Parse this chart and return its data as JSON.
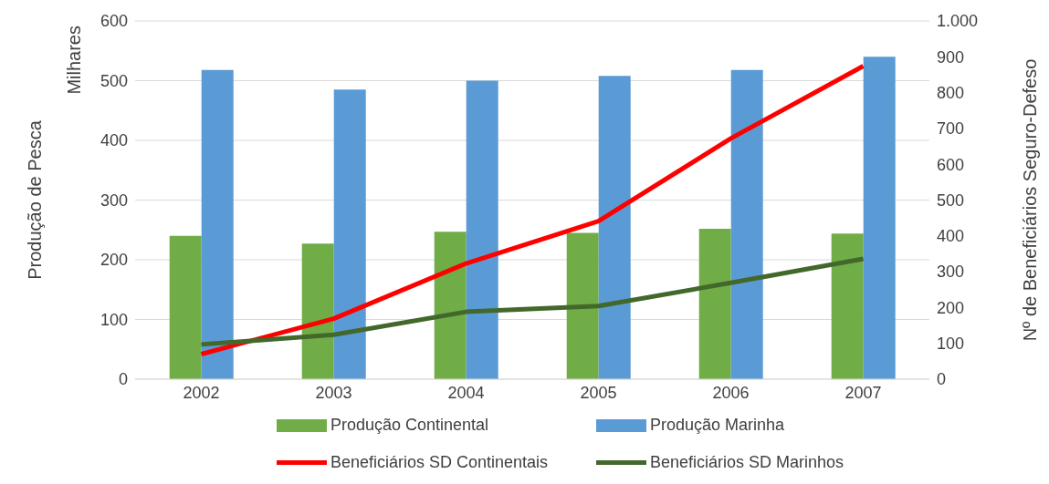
{
  "chart_data": {
    "type": "bar",
    "ylabel": "Produção de Pesca",
    "y2label": "Nº de Beneficiários Seguro-Defeso",
    "annotations": [
      "Milhares"
    ],
    "categories": [
      "2002",
      "2003",
      "2004",
      "2005",
      "2006",
      "2007"
    ],
    "series": [
      {
        "name": "Produção Continental",
        "color": "#70ad47",
        "values": [
          240,
          227,
          247,
          245,
          252,
          244
        ]
      },
      {
        "name": "Produção Marinha",
        "color": "#5b9bd5",
        "values": [
          518,
          485,
          500,
          508,
          518,
          540
        ]
      },
      {
        "name": "Beneficiários SD Continentais",
        "type": "line",
        "axis": "y2",
        "color": "#ff0000",
        "values": [
          70,
          169,
          323,
          441,
          672,
          874
        ]
      },
      {
        "name": "Beneficiários SD Marinhos",
        "type": "line",
        "axis": "y2",
        "color": "#43682b",
        "values": [
          97,
          124,
          188,
          204,
          269,
          336
        ]
      }
    ],
    "ylim": [
      0,
      600
    ],
    "yticks": [
      0,
      100,
      200,
      300,
      400,
      500,
      600
    ],
    "y2lim": [
      0,
      1000
    ],
    "y2ticks": [
      0,
      100,
      200,
      300,
      400,
      500,
      600,
      700,
      800,
      900,
      {
        "value": 1000,
        "label": "1.000"
      }
    ],
    "grid": "y",
    "legend": "bottom",
    "marker": "none",
    "line_style": "solid"
  }
}
